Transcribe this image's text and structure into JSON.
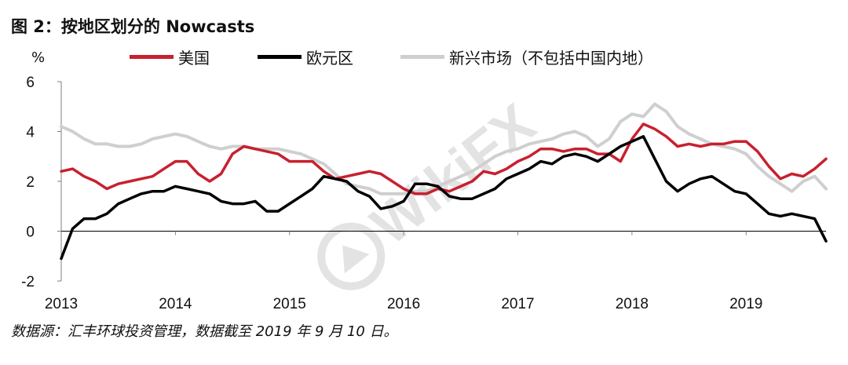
{
  "header": {
    "title": "图 2：按地区划分的 Nowcasts",
    "unit": "%"
  },
  "source_note": "数据源：汇丰环球投资管理，数据截至 2019 年 9 月 10 日。",
  "watermark": "WikiFX",
  "colors": {
    "us": "#c8202f",
    "eurozone": "#000000",
    "em": "#cfcfcf",
    "axis": "#7f7f7f"
  },
  "chart_data": {
    "type": "line",
    "title": "图 2：按地区划分的 Nowcasts",
    "ylabel": "%",
    "xlabel": "",
    "ylim": [
      -2,
      6
    ],
    "yticks": [
      "-2",
      "0",
      "2",
      "4",
      "6"
    ],
    "xticks": [
      "2013",
      "2014",
      "2015",
      "2016",
      "2017",
      "2018",
      "2019"
    ],
    "xlim": [
      2013.0,
      2019.7
    ],
    "grid": false,
    "legend_position": "top",
    "series": [
      {
        "name": "美国",
        "key": "us",
        "x": [
          2013.0,
          2013.1,
          2013.2,
          2013.3,
          2013.4,
          2013.5,
          2013.6,
          2013.7,
          2013.8,
          2013.9,
          2014.0,
          2014.1,
          2014.2,
          2014.3,
          2014.4,
          2014.5,
          2014.6,
          2014.7,
          2014.8,
          2014.9,
          2015.0,
          2015.1,
          2015.2,
          2015.3,
          2015.4,
          2015.5,
          2015.6,
          2015.7,
          2015.8,
          2015.9,
          2016.0,
          2016.1,
          2016.2,
          2016.3,
          2016.4,
          2016.5,
          2016.6,
          2016.7,
          2016.8,
          2016.9,
          2017.0,
          2017.1,
          2017.2,
          2017.3,
          2017.4,
          2017.5,
          2017.6,
          2017.7,
          2017.8,
          2017.9,
          2018.0,
          2018.1,
          2018.2,
          2018.3,
          2018.4,
          2018.5,
          2018.6,
          2018.7,
          2018.8,
          2018.9,
          2019.0,
          2019.1,
          2019.2,
          2019.3,
          2019.4,
          2019.5,
          2019.6,
          2019.7
        ],
        "values": [
          2.4,
          2.5,
          2.2,
          2.0,
          1.7,
          1.9,
          2.0,
          2.1,
          2.2,
          2.5,
          2.8,
          2.8,
          2.3,
          2.0,
          2.3,
          3.1,
          3.4,
          3.3,
          3.2,
          3.1,
          2.8,
          2.8,
          2.8,
          2.4,
          2.1,
          2.2,
          2.3,
          2.4,
          2.3,
          2.0,
          1.7,
          1.5,
          1.5,
          1.7,
          1.6,
          1.8,
          2.0,
          2.4,
          2.3,
          2.5,
          2.8,
          3.0,
          3.3,
          3.3,
          3.2,
          3.3,
          3.3,
          3.1,
          3.1,
          2.8,
          3.7,
          4.3,
          4.1,
          3.8,
          3.4,
          3.5,
          3.4,
          3.5,
          3.5,
          3.6,
          3.6,
          3.2,
          2.6,
          2.1,
          2.3,
          2.2,
          2.5,
          2.9
        ]
      },
      {
        "name": "欧元区",
        "key": "eurozone",
        "x": [
          2013.0,
          2013.1,
          2013.2,
          2013.3,
          2013.4,
          2013.5,
          2013.6,
          2013.7,
          2013.8,
          2013.9,
          2014.0,
          2014.1,
          2014.2,
          2014.3,
          2014.4,
          2014.5,
          2014.6,
          2014.7,
          2014.8,
          2014.9,
          2015.0,
          2015.1,
          2015.2,
          2015.3,
          2015.4,
          2015.5,
          2015.6,
          2015.7,
          2015.8,
          2015.9,
          2016.0,
          2016.1,
          2016.2,
          2016.3,
          2016.4,
          2016.5,
          2016.6,
          2016.7,
          2016.8,
          2016.9,
          2017.0,
          2017.1,
          2017.2,
          2017.3,
          2017.4,
          2017.5,
          2017.6,
          2017.7,
          2017.8,
          2017.9,
          2018.0,
          2018.1,
          2018.2,
          2018.3,
          2018.4,
          2018.5,
          2018.6,
          2018.7,
          2018.8,
          2018.9,
          2019.0,
          2019.1,
          2019.2,
          2019.3,
          2019.4,
          2019.5,
          2019.6,
          2019.7
        ],
        "values": [
          -1.1,
          0.1,
          0.5,
          0.5,
          0.7,
          1.1,
          1.3,
          1.5,
          1.6,
          1.6,
          1.8,
          1.7,
          1.6,
          1.5,
          1.2,
          1.1,
          1.1,
          1.2,
          0.8,
          0.8,
          1.1,
          1.4,
          1.7,
          2.2,
          2.1,
          2.0,
          1.6,
          1.4,
          0.9,
          1.0,
          1.2,
          1.9,
          1.9,
          1.8,
          1.4,
          1.3,
          1.3,
          1.5,
          1.7,
          2.1,
          2.3,
          2.5,
          2.8,
          2.7,
          3.0,
          3.1,
          3.0,
          2.8,
          3.1,
          3.4,
          3.6,
          3.8,
          2.9,
          2.0,
          1.6,
          1.9,
          2.1,
          2.2,
          1.9,
          1.6,
          1.5,
          1.1,
          0.7,
          0.6,
          0.7,
          0.6,
          0.5,
          -0.4
        ]
      },
      {
        "name": "新兴市场（不包括中国内地）",
        "key": "em",
        "x": [
          2013.0,
          2013.1,
          2013.2,
          2013.3,
          2013.4,
          2013.5,
          2013.6,
          2013.7,
          2013.8,
          2013.9,
          2014.0,
          2014.1,
          2014.2,
          2014.3,
          2014.4,
          2014.5,
          2014.6,
          2014.7,
          2014.8,
          2014.9,
          2015.0,
          2015.1,
          2015.2,
          2015.3,
          2015.4,
          2015.5,
          2015.6,
          2015.7,
          2015.8,
          2015.9,
          2016.0,
          2016.1,
          2016.2,
          2016.3,
          2016.4,
          2016.5,
          2016.6,
          2016.7,
          2016.8,
          2016.9,
          2017.0,
          2017.1,
          2017.2,
          2017.3,
          2017.4,
          2017.5,
          2017.6,
          2017.7,
          2017.8,
          2017.9,
          2018.0,
          2018.1,
          2018.2,
          2018.3,
          2018.4,
          2018.5,
          2018.6,
          2018.7,
          2018.8,
          2018.9,
          2019.0,
          2019.1,
          2019.2,
          2019.3,
          2019.4,
          2019.5,
          2019.6,
          2019.7
        ],
        "values": [
          4.2,
          4.0,
          3.7,
          3.5,
          3.5,
          3.4,
          3.4,
          3.5,
          3.7,
          3.8,
          3.9,
          3.8,
          3.6,
          3.4,
          3.3,
          3.4,
          3.4,
          3.3,
          3.3,
          3.3,
          3.2,
          3.1,
          2.9,
          2.7,
          2.3,
          1.9,
          1.8,
          1.7,
          1.5,
          1.5,
          1.5,
          1.6,
          1.6,
          1.8,
          2.0,
          2.2,
          2.4,
          2.7,
          3.0,
          3.2,
          3.3,
          3.5,
          3.6,
          3.7,
          3.9,
          4.0,
          3.8,
          3.4,
          3.7,
          4.4,
          4.7,
          4.6,
          5.1,
          4.8,
          4.2,
          3.9,
          3.7,
          3.5,
          3.4,
          3.3,
          3.1,
          2.6,
          2.2,
          1.9,
          1.6,
          2.0,
          2.2,
          1.7
        ]
      }
    ]
  }
}
